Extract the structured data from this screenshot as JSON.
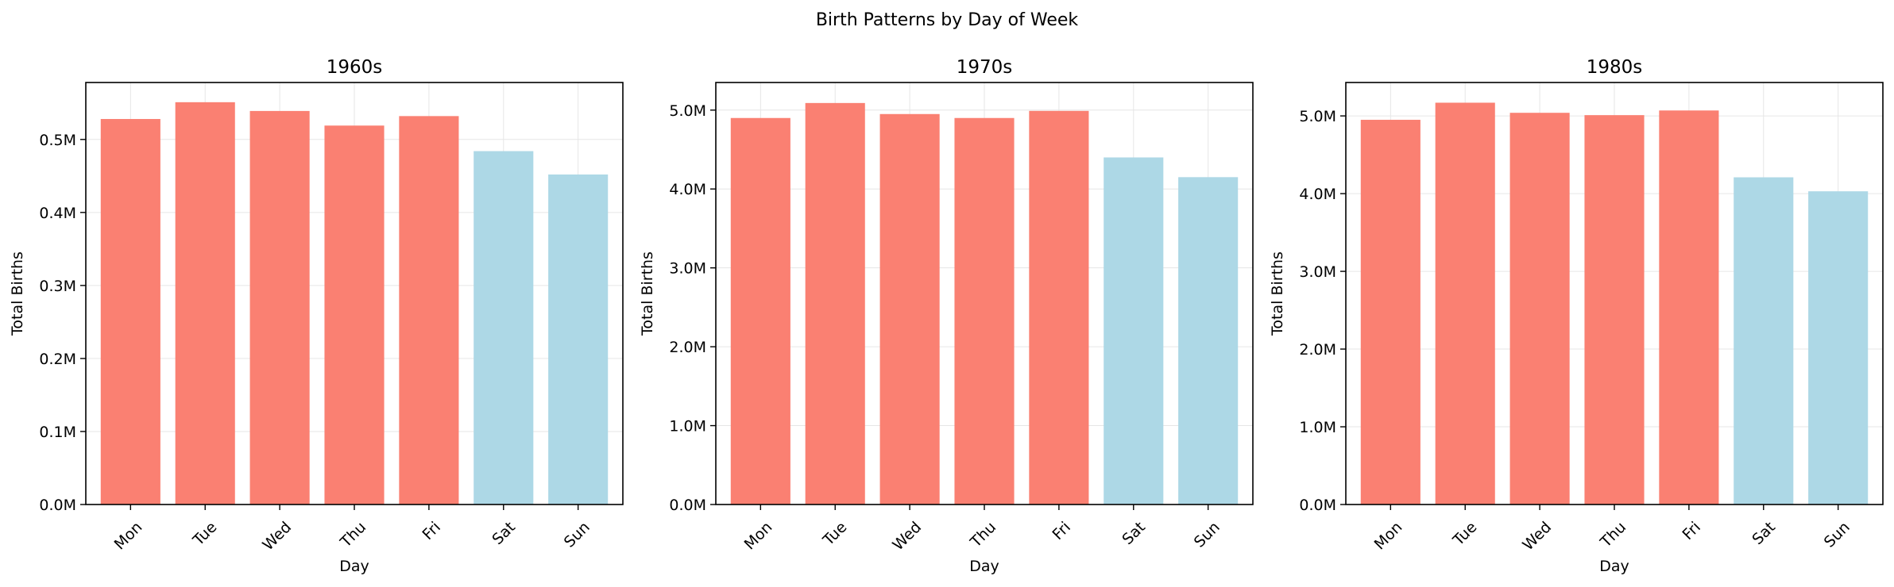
{
  "figure": {
    "title": "Birth Patterns by Day of Week"
  },
  "colors": {
    "weekday": "#fa8072",
    "weekend": "#add8e6",
    "grid": "#e6e6e6",
    "axis": "#000000"
  },
  "chart_data": [
    {
      "type": "bar",
      "title": "1960s",
      "xlabel": "Day",
      "ylabel": "Total Births",
      "categories": [
        "Mon",
        "Tue",
        "Wed",
        "Thu",
        "Fri",
        "Sat",
        "Sun"
      ],
      "values": [
        528000,
        551000,
        539000,
        519000,
        532000,
        484000,
        452000
      ],
      "weekend": [
        false,
        false,
        false,
        false,
        false,
        true,
        true
      ],
      "ylim": [
        0,
        578000
      ],
      "yticks": [
        0,
        100000,
        200000,
        300000,
        400000,
        500000
      ],
      "ytick_labels": [
        "0.0M",
        "0.1M",
        "0.2M",
        "0.3M",
        "0.4M",
        "0.5M"
      ],
      "grid": true
    },
    {
      "type": "bar",
      "title": "1970s",
      "xlabel": "Day",
      "ylabel": "Total Births",
      "categories": [
        "Mon",
        "Tue",
        "Wed",
        "Thu",
        "Fri",
        "Sat",
        "Sun"
      ],
      "values": [
        4900000,
        5090000,
        4950000,
        4900000,
        4990000,
        4400000,
        4150000
      ],
      "weekend": [
        false,
        false,
        false,
        false,
        false,
        true,
        true
      ],
      "ylim": [
        0,
        5350000
      ],
      "yticks": [
        0,
        1000000,
        2000000,
        3000000,
        4000000,
        5000000
      ],
      "ytick_labels": [
        "0.0M",
        "1.0M",
        "2.0M",
        "3.0M",
        "4.0M",
        "5.0M"
      ],
      "grid": true
    },
    {
      "type": "bar",
      "title": "1980s",
      "xlabel": "Day",
      "ylabel": "Total Births",
      "categories": [
        "Mon",
        "Tue",
        "Wed",
        "Thu",
        "Fri",
        "Sat",
        "Sun"
      ],
      "values": [
        4950000,
        5170000,
        5040000,
        5010000,
        5070000,
        4210000,
        4030000
      ],
      "weekend": [
        false,
        false,
        false,
        false,
        false,
        true,
        true
      ],
      "ylim": [
        0,
        5430000
      ],
      "yticks": [
        0,
        1000000,
        2000000,
        3000000,
        4000000,
        5000000
      ],
      "ytick_labels": [
        "0.0M",
        "1.0M",
        "2.0M",
        "3.0M",
        "4.0M",
        "5.0M"
      ],
      "grid": true
    }
  ]
}
